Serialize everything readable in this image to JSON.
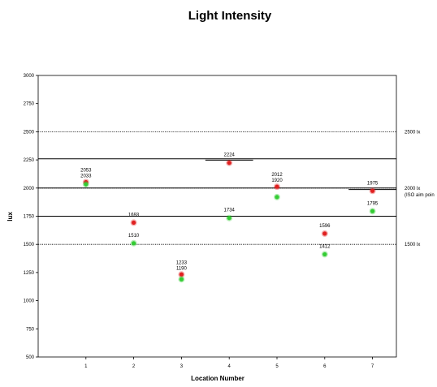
{
  "chart_data": {
    "type": "scatter",
    "title": "Light Intensity",
    "xlabel": "Location Number",
    "ylabel": "lux",
    "xlim": [
      0,
      7.5
    ],
    "ylim": [
      500,
      3000
    ],
    "grid": false,
    "x_ticks": [
      "1",
      "2",
      "3",
      "4",
      "5",
      "6",
      "7"
    ],
    "y_ticks": [
      "500",
      "750",
      "1000",
      "1250",
      "1500",
      "1750",
      "2000",
      "2250",
      "2500",
      "2750",
      "3000"
    ],
    "series": [
      {
        "color": "#e02020",
        "points": [
          {
            "x": 1,
            "y": 2053,
            "label": "2053"
          },
          {
            "x": 2,
            "y": 1693,
            "label": "1693"
          },
          {
            "x": 3,
            "y": 1233,
            "label": "1233"
          },
          {
            "x": 4,
            "y": 2224,
            "label": "2224"
          },
          {
            "x": 5,
            "y": 2012,
            "label": "2012"
          },
          {
            "x": 6,
            "y": 1596,
            "label": "1596"
          },
          {
            "x": 7,
            "y": 1975,
            "label": "1975"
          }
        ]
      },
      {
        "color": "#33cc33",
        "points": [
          {
            "x": 1,
            "y": 2033,
            "label": "2033"
          },
          {
            "x": 2,
            "y": 1510,
            "label": "1510"
          },
          {
            "x": 3,
            "y": 1190,
            "label": "1190"
          },
          {
            "x": 4,
            "y": 1734,
            "label": "1734"
          },
          {
            "x": 5,
            "y": 1920,
            "label": "1920"
          },
          {
            "x": 6,
            "y": 1412,
            "label": "1412"
          },
          {
            "x": 7,
            "y": 1795,
            "label": "1795"
          }
        ]
      }
    ],
    "reference_lines": [
      {
        "y": 2500,
        "style": "dotted",
        "label": "2500 lx",
        "x_from": 0,
        "x_to": 7.5
      },
      {
        "y": 2000,
        "style": "dotted",
        "label": "2000 lx",
        "sublabel": "(ISO aim poin",
        "x_from": 0,
        "x_to": 7.5
      },
      {
        "y": 1500,
        "style": "dotted",
        "label": "1500 lx",
        "x_from": 0,
        "x_to": 7.5
      },
      {
        "y": 2260,
        "style": "solid",
        "x_from": 0,
        "x_to": 7.5
      },
      {
        "y": 2000,
        "style": "solid",
        "x_from": 0,
        "x_to": 7.5
      },
      {
        "y": 1750,
        "style": "solid",
        "x_from": 0,
        "x_to": 7.5
      },
      {
        "y": 2248,
        "style": "solid",
        "x_from": 3.5,
        "x_to": 4.5
      },
      {
        "y": 1987,
        "style": "solid",
        "x_from": 6.5,
        "x_to": 7.5
      }
    ]
  }
}
